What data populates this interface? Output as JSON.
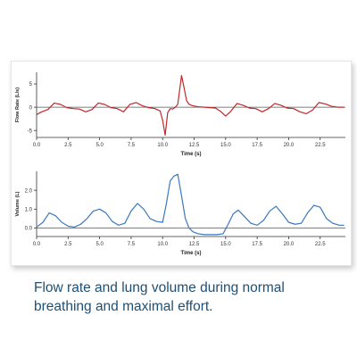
{
  "caption": "Flow rate and lung volume during normal breathing and maximal effort.",
  "colors": {
    "flow_line": "#c0282d",
    "volume_line": "#3a78c0",
    "zero_line": "#555555"
  },
  "chart_data": [
    {
      "type": "line",
      "title": "",
      "xlabel": "Time (s)",
      "ylabel": "Flow Rate (L/s)",
      "xlim": [
        0,
        24.5
      ],
      "ylim": [
        -6.5,
        7.5
      ],
      "xticks": [
        "0.0",
        "2.5",
        "5.0",
        "7.5",
        "10.0",
        "12.5",
        "15.0",
        "17.5",
        "20.0",
        "22.5"
      ],
      "xtick_values": [
        0,
        2.5,
        5,
        7.5,
        10,
        12.5,
        15,
        17.5,
        20,
        22.5
      ],
      "yticks": [
        "-5",
        "0",
        "5"
      ],
      "ytick_values": [
        -5,
        0,
        5
      ],
      "grid": false,
      "series": [
        {
          "x": [
            0,
            0.4,
            0.9,
            1.4,
            1.9,
            2.4,
            2.9,
            3.4,
            3.9,
            4.4,
            4.9,
            5.4,
            5.9,
            6.4,
            6.9,
            7.4,
            7.9,
            8.4,
            8.9,
            9.4,
            9.8,
            10.0,
            10.2,
            10.4,
            10.6,
            10.8,
            11.0,
            11.2,
            11.5,
            11.7,
            11.9,
            12.1,
            12.4,
            12.8,
            13.3,
            13.8,
            14.2,
            14.6,
            15.0,
            15.4,
            15.9,
            16.4,
            16.9,
            17.4,
            17.9,
            18.4,
            18.9,
            19.4,
            19.9,
            20.4,
            20.9,
            21.4,
            21.9,
            22.4,
            22.9,
            23.4,
            23.9,
            24.4
          ],
          "y": [
            -1.6,
            -1.0,
            -0.5,
            0.9,
            0.6,
            -0.1,
            -0.3,
            -0.4,
            -1.0,
            -0.5,
            0.9,
            0.6,
            -0.1,
            -0.3,
            -1.0,
            0.6,
            1.0,
            0.3,
            -0.1,
            -0.3,
            -0.8,
            -2.8,
            -6.0,
            -1.2,
            -0.3,
            -0.4,
            0.0,
            0.6,
            6.8,
            4.2,
            1.4,
            0.6,
            0.3,
            0.1,
            0.0,
            -0.1,
            -0.2,
            -0.9,
            -1.9,
            -0.9,
            0.8,
            0.4,
            -0.2,
            -0.3,
            -1.0,
            -0.3,
            0.8,
            0.4,
            -0.2,
            -0.3,
            -1.0,
            -1.4,
            -0.6,
            1.0,
            0.7,
            0.2,
            0.0,
            0.0
          ]
        }
      ]
    },
    {
      "type": "line",
      "title": "",
      "xlabel": "Time (s)",
      "ylabel": "Volume (L)",
      "xlim": [
        0,
        24.5
      ],
      "ylim": [
        -0.45,
        3.0
      ],
      "xticks": [
        "0.0",
        "2.5",
        "5.0",
        "7.5",
        "10.0",
        "12.5",
        "15.0",
        "17.5",
        "20.0",
        "22.5"
      ],
      "xtick_values": [
        0,
        2.5,
        5,
        7.5,
        10,
        12.5,
        15,
        17.5,
        20,
        22.5
      ],
      "yticks": [
        "0.0",
        "1.0",
        "2.0"
      ],
      "ytick_values": [
        0,
        1,
        2
      ],
      "grid": false,
      "series": [
        {
          "x": [
            0,
            0.5,
            1.0,
            1.5,
            2.0,
            2.5,
            3.0,
            3.5,
            4.0,
            4.5,
            5.0,
            5.5,
            6.0,
            6.5,
            7.0,
            7.5,
            8.0,
            8.5,
            9.0,
            9.5,
            10.0,
            10.3,
            10.6,
            10.9,
            11.2,
            11.5,
            11.8,
            12.1,
            12.4,
            12.8,
            13.3,
            13.8,
            14.3,
            14.8,
            15.2,
            15.6,
            16.0,
            16.5,
            17.0,
            17.5,
            18.0,
            18.5,
            19.0,
            19.5,
            20.0,
            20.5,
            21.0,
            21.5,
            22.0,
            22.5,
            23.0,
            23.5,
            24.0,
            24.4
          ],
          "y": [
            0.05,
            0.3,
            0.8,
            0.65,
            0.3,
            0.1,
            0.05,
            0.2,
            0.5,
            0.9,
            1.0,
            0.8,
            0.35,
            0.15,
            0.25,
            0.9,
            1.3,
            1.0,
            0.5,
            0.35,
            0.3,
            1.3,
            2.5,
            2.75,
            2.85,
            1.7,
            0.5,
            0.0,
            -0.2,
            -0.3,
            -0.35,
            -0.35,
            -0.35,
            -0.3,
            0.2,
            0.75,
            0.95,
            0.6,
            0.25,
            0.15,
            0.4,
            0.9,
            1.15,
            0.75,
            0.3,
            0.2,
            0.25,
            0.8,
            1.2,
            1.1,
            0.5,
            0.25,
            0.15,
            0.15
          ]
        }
      ]
    }
  ]
}
